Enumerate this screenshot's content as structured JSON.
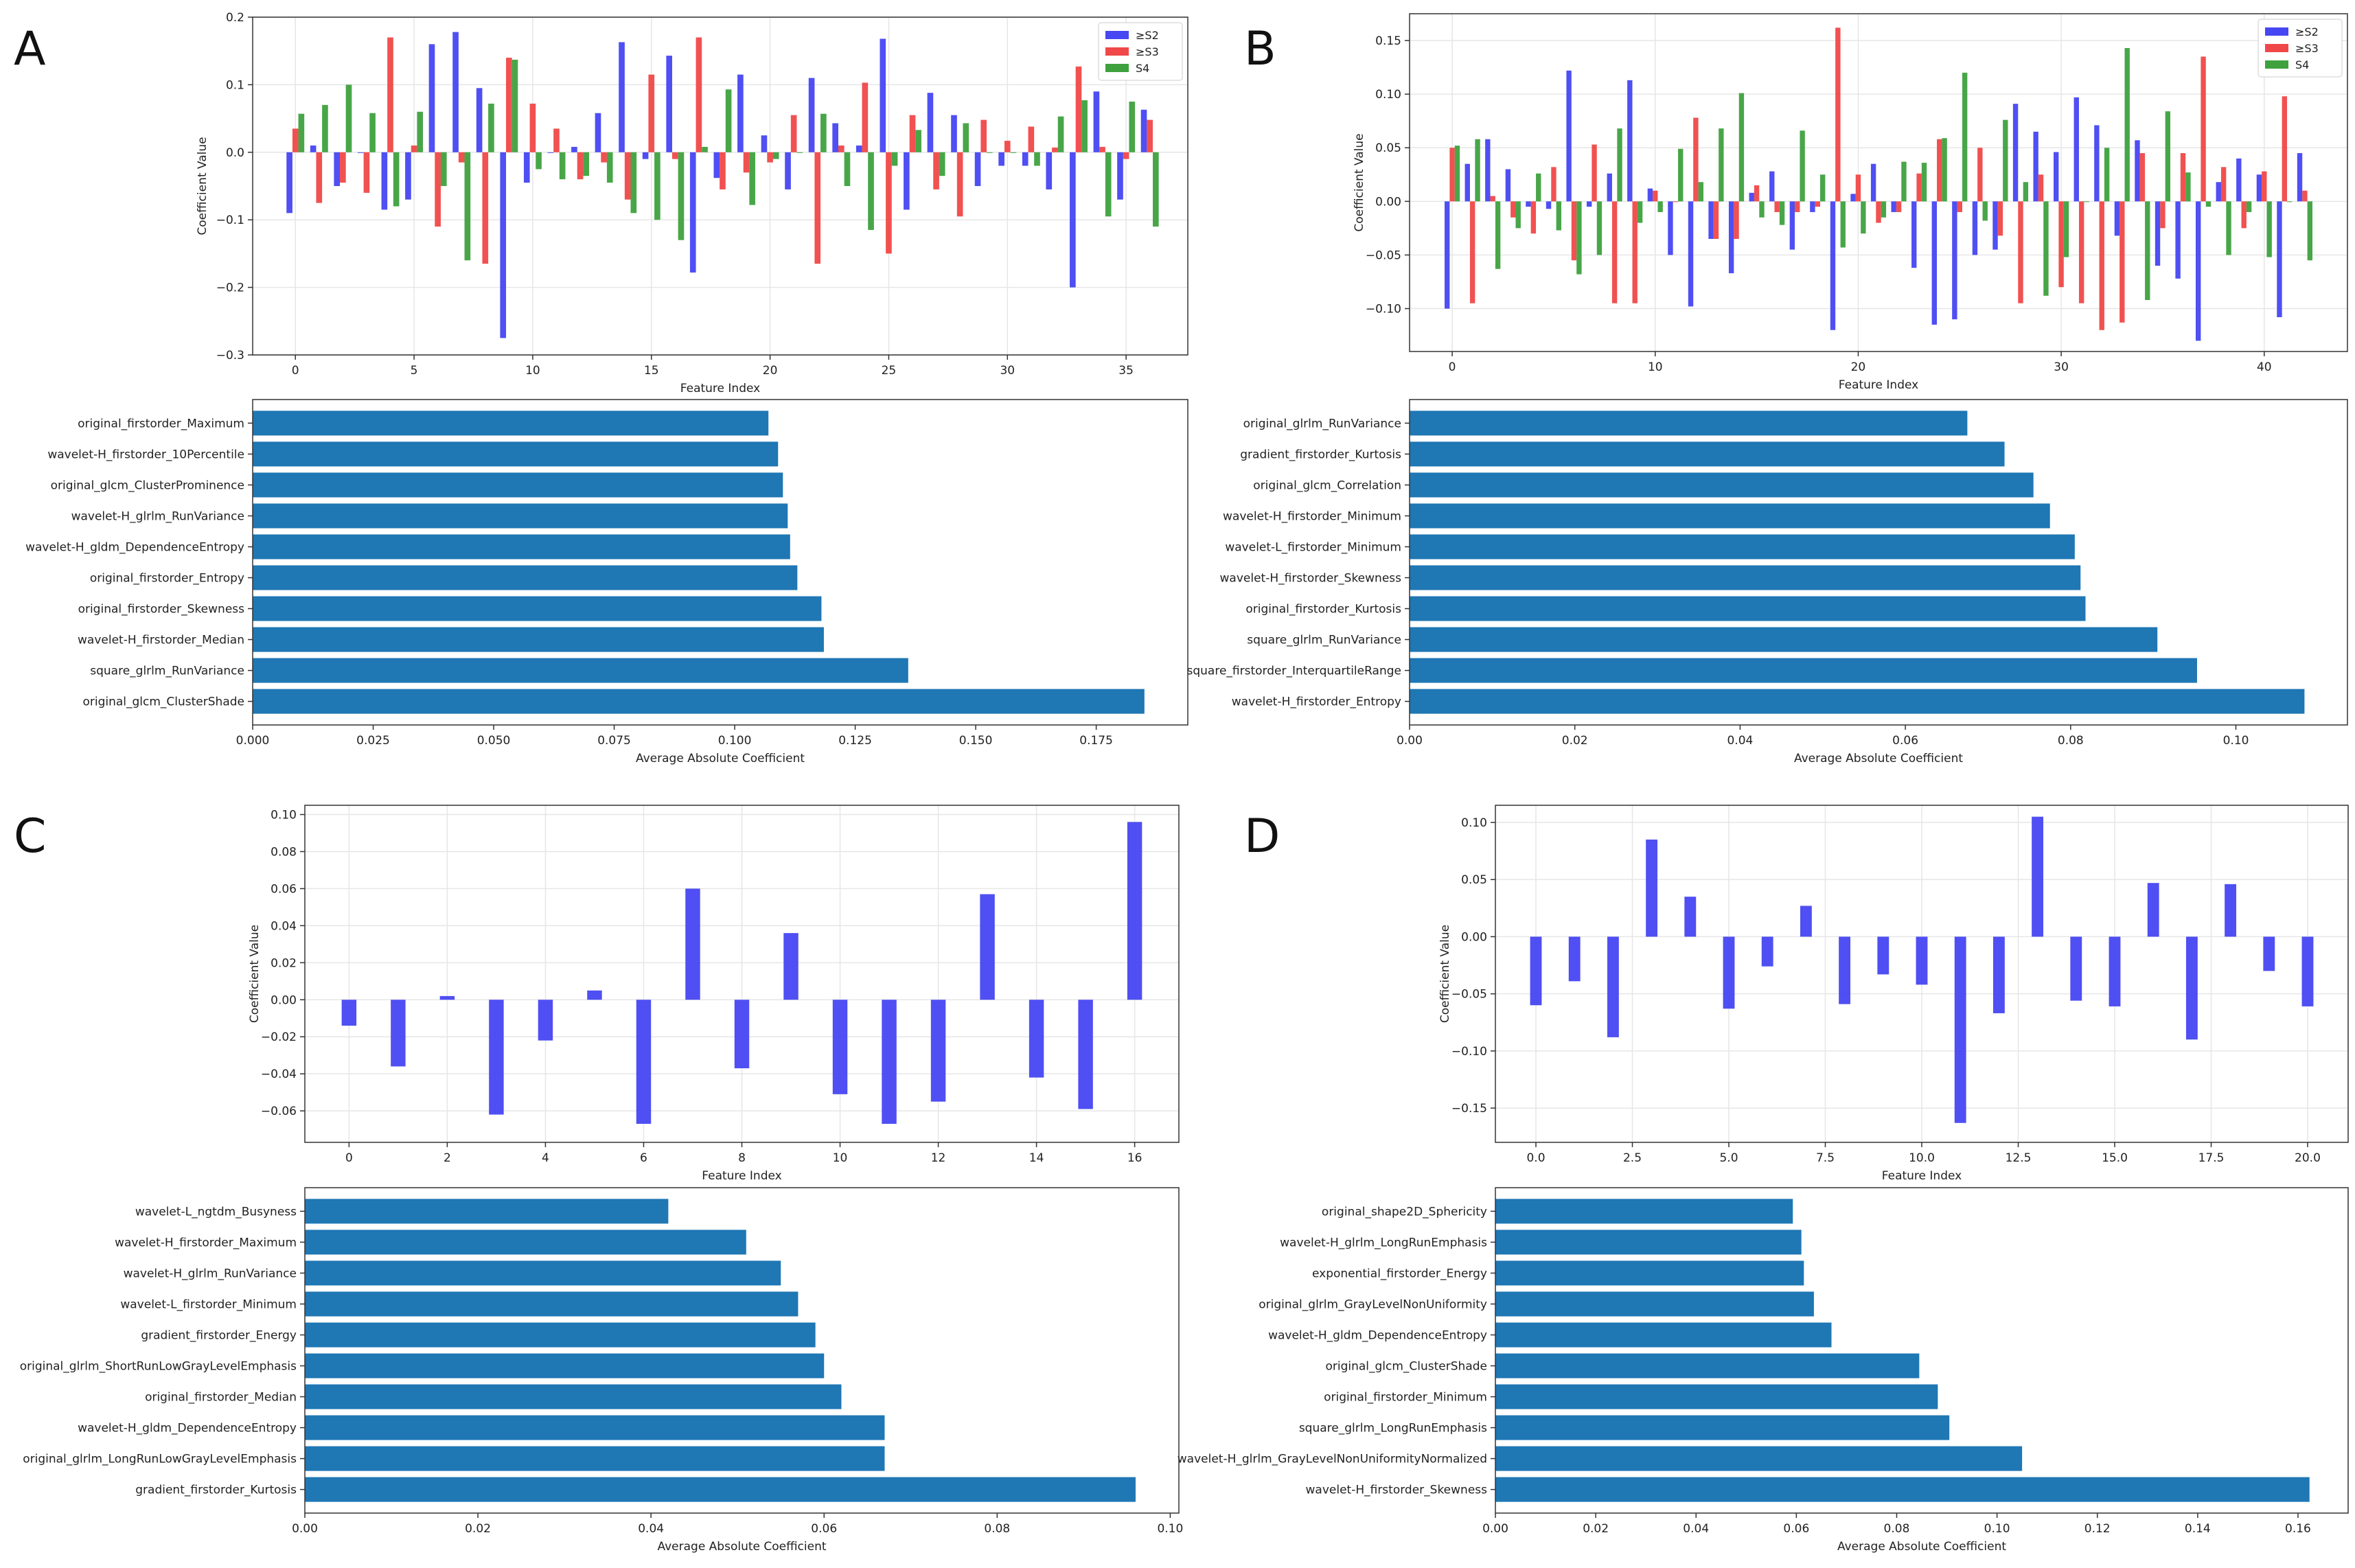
{
  "figure": {
    "panel_letters": [
      "A",
      "B",
      "C",
      "D"
    ]
  },
  "colors": {
    "s2": "#4646f2",
    "s3": "#f04848",
    "s4": "#3ea13e",
    "bar": "#1f77b4"
  },
  "chart_data": [
    {
      "id": "A-top",
      "type": "bar",
      "title": "",
      "xlabel": "Feature Index",
      "ylabel": "Coefficient Value",
      "xlim": [
        -1.8,
        37.6
      ],
      "ylim": [
        -0.3,
        0.2
      ],
      "xticks": [
        0,
        5,
        10,
        15,
        20,
        25,
        30,
        35
      ],
      "yticks": [
        -0.3,
        -0.2,
        -0.1,
        0.0,
        0.1,
        0.2
      ],
      "ytick_decimals": 1,
      "legend": [
        "≥S2",
        "≥S3",
        "S4"
      ],
      "series": [
        {
          "name": "≥S2",
          "values": [
            -0.09,
            0.01,
            -0.05,
            0.0,
            -0.085,
            -0.07,
            0.16,
            0.178,
            0.095,
            -0.275,
            -0.045,
            0.0,
            0.008,
            0.058,
            0.163,
            -0.01,
            0.143,
            -0.178,
            -0.038,
            0.115,
            0.025,
            -0.055,
            0.11,
            0.043,
            0.01,
            0.168,
            -0.085,
            0.088,
            0.055,
            -0.05,
            -0.02,
            -0.02,
            -0.055,
            -0.2,
            0.09,
            -0.07,
            0.063
          ]
        },
        {
          "name": "≥S3",
          "values": [
            0.035,
            -0.075,
            -0.045,
            -0.06,
            0.17,
            0.01,
            -0.11,
            -0.015,
            -0.165,
            0.14,
            0.072,
            0.035,
            -0.04,
            -0.015,
            -0.07,
            0.115,
            -0.01,
            0.17,
            -0.055,
            -0.03,
            -0.015,
            0.055,
            -0.165,
            0.01,
            0.103,
            -0.15,
            0.055,
            -0.055,
            -0.095,
            0.048,
            0.017,
            0.038,
            0.007,
            0.127,
            0.008,
            -0.01,
            0.048
          ]
        },
        {
          "name": "S4",
          "values": [
            0.057,
            0.07,
            0.1,
            0.058,
            -0.08,
            0.06,
            -0.05,
            -0.16,
            0.072,
            0.137,
            -0.025,
            -0.04,
            -0.035,
            -0.045,
            -0.09,
            -0.1,
            -0.13,
            0.008,
            0.093,
            -0.078,
            -0.01,
            0.0,
            0.057,
            -0.05,
            -0.115,
            -0.02,
            0.033,
            -0.035,
            0.043,
            0.0,
            0.0,
            -0.02,
            0.053,
            0.077,
            -0.095,
            0.075,
            -0.11
          ]
        }
      ]
    },
    {
      "id": "A-bottom",
      "type": "barh",
      "xlabel": "Average Absolute Coefficient",
      "ylabel": "",
      "xlim": [
        0,
        0.194
      ],
      "xticks": [
        0,
        0.025,
        0.05,
        0.075,
        0.1,
        0.125,
        0.15,
        0.175
      ],
      "xtick_decimals": 3,
      "categories": [
        "original_firstorder_Maximum",
        "wavelet-H_firstorder_10Percentile",
        "original_glcm_ClusterProminence",
        "wavelet-H_glrlm_RunVariance",
        "wavelet-H_gldm_DependenceEntropy",
        "original_firstorder_Entropy",
        "original_firstorder_Skewness",
        "wavelet-H_firstorder_Median",
        "square_glrlm_RunVariance",
        "original_glcm_ClusterShade"
      ],
      "values": [
        0.107,
        0.109,
        0.11,
        0.111,
        0.1115,
        0.113,
        0.118,
        0.1185,
        0.136,
        0.185
      ]
    },
    {
      "id": "B-top",
      "type": "bar",
      "title": "",
      "xlabel": "Feature Index",
      "ylabel": "Coefficient Value",
      "xlim": [
        -2.1,
        44.1
      ],
      "ylim": [
        -0.14,
        0.175
      ],
      "xticks": [
        0,
        10,
        20,
        30,
        40
      ],
      "yticks": [
        -0.1,
        -0.05,
        0.0,
        0.05,
        0.1,
        0.15
      ],
      "ytick_decimals": 2,
      "legend": [
        "≥S2",
        "≥S3",
        "S4"
      ],
      "series": [
        {
          "name": "≥S2",
          "values": [
            -0.1,
            0.035,
            0.058,
            0.03,
            -0.005,
            -0.007,
            0.122,
            -0.005,
            0.026,
            0.113,
            0.012,
            -0.05,
            -0.098,
            -0.035,
            -0.067,
            0.008,
            0.028,
            -0.045,
            -0.01,
            -0.12,
            0.007,
            0.035,
            -0.01,
            -0.062,
            -0.115,
            -0.11,
            -0.05,
            -0.045,
            0.091,
            0.065,
            0.046,
            0.097,
            0.071,
            -0.032,
            0.057,
            -0.06,
            -0.072,
            -0.13,
            0.018,
            0.04,
            0.025,
            -0.108,
            0.045
          ]
        },
        {
          "name": "≥S3",
          "values": [
            0.05,
            -0.095,
            0.005,
            -0.015,
            -0.03,
            0.032,
            -0.055,
            0.053,
            -0.095,
            -0.095,
            0.01,
            0.0,
            0.078,
            -0.035,
            -0.035,
            0.015,
            -0.01,
            -0.01,
            -0.005,
            0.162,
            0.025,
            -0.02,
            -0.01,
            0.026,
            0.058,
            -0.01,
            0.05,
            -0.032,
            -0.095,
            0.025,
            -0.08,
            -0.095,
            -0.12,
            -0.113,
            0.045,
            -0.025,
            0.045,
            0.135,
            0.032,
            -0.025,
            0.028,
            0.098,
            0.01
          ]
        },
        {
          "name": "S4",
          "values": [
            0.052,
            0.058,
            -0.063,
            -0.025,
            0.026,
            -0.027,
            -0.068,
            -0.05,
            0.068,
            -0.02,
            -0.01,
            0.049,
            0.018,
            0.068,
            0.101,
            -0.015,
            -0.022,
            0.066,
            0.025,
            -0.043,
            -0.03,
            -0.015,
            0.037,
            0.036,
            0.059,
            0.12,
            -0.018,
            0.076,
            0.018,
            -0.088,
            -0.052,
            0.0,
            0.05,
            0.143,
            -0.092,
            0.084,
            0.027,
            -0.005,
            -0.05,
            -0.01,
            -0.052,
            0.0,
            -0.055
          ]
        }
      ]
    },
    {
      "id": "B-bottom",
      "type": "barh",
      "xlabel": "Average Absolute Coefficient",
      "ylabel": "",
      "xlim": [
        0,
        0.1135
      ],
      "xticks": [
        0,
        0.02,
        0.04,
        0.06,
        0.08,
        0.1
      ],
      "xtick_decimals": 2,
      "categories": [
        "original_glrlm_RunVariance",
        "gradient_firstorder_Kurtosis",
        "original_glcm_Correlation",
        "wavelet-H_firstorder_Minimum",
        "wavelet-L_firstorder_Minimum",
        "wavelet-H_firstorder_Skewness",
        "original_firstorder_Kurtosis",
        "square_glrlm_RunVariance",
        "square_firstorder_InterquartileRange",
        "wavelet-H_firstorder_Entropy"
      ],
      "values": [
        0.0675,
        0.072,
        0.0755,
        0.0775,
        0.0805,
        0.0812,
        0.0818,
        0.0905,
        0.0953,
        0.1083
      ]
    },
    {
      "id": "C-top",
      "type": "bar",
      "title": "",
      "xlabel": "Feature Index",
      "ylabel": "Coefficient Value",
      "xlim": [
        -0.9,
        16.9
      ],
      "ylim": [
        -0.077,
        0.105
      ],
      "xticks": [
        0,
        2,
        4,
        6,
        8,
        10,
        12,
        14,
        16
      ],
      "yticks": [
        -0.06,
        -0.04,
        -0.02,
        0.0,
        0.02,
        0.04,
        0.06,
        0.08,
        0.1
      ],
      "ytick_decimals": 2,
      "series": [
        {
          "name": "",
          "values": [
            -0.014,
            -0.036,
            0.002,
            -0.062,
            -0.022,
            0.005,
            -0.067,
            0.06,
            -0.037,
            0.036,
            -0.051,
            -0.067,
            -0.055,
            0.057,
            -0.042,
            -0.059,
            0.096
          ]
        }
      ]
    },
    {
      "id": "C-bottom",
      "type": "barh",
      "xlabel": "Average Absolute Coefficient",
      "ylabel": "",
      "xlim": [
        0,
        0.101
      ],
      "xticks": [
        0,
        0.02,
        0.04,
        0.06,
        0.08,
        0.1
      ],
      "xtick_decimals": 2,
      "categories": [
        "wavelet-L_ngtdm_Busyness",
        "wavelet-H_firstorder_Maximum",
        "wavelet-H_glrlm_RunVariance",
        "wavelet-L_firstorder_Minimum",
        "gradient_firstorder_Energy",
        "original_glrlm_ShortRunLowGrayLevelEmphasis",
        "original_firstorder_Median",
        "wavelet-H_gldm_DependenceEntropy",
        "original_glrlm_LongRunLowGrayLevelEmphasis",
        "gradient_firstorder_Kurtosis"
      ],
      "values": [
        0.042,
        0.051,
        0.055,
        0.057,
        0.059,
        0.06,
        0.062,
        0.067,
        0.067,
        0.096
      ]
    },
    {
      "id": "D-top",
      "type": "bar",
      "title": "",
      "xlabel": "Feature Index",
      "ylabel": "Coefficient Value",
      "xlim": [
        -1.05,
        21.05
      ],
      "ylim": [
        -0.18,
        0.115
      ],
      "xticks": [
        0,
        2.5,
        5,
        7.5,
        10,
        12.5,
        15,
        17.5,
        20
      ],
      "yticks": [
        -0.15,
        -0.1,
        -0.05,
        0.0,
        0.05,
        0.1
      ],
      "ytick_decimals": 2,
      "xtick_decimals": 1,
      "series": [
        {
          "name": "",
          "values": [
            -0.06,
            -0.039,
            -0.088,
            0.085,
            0.035,
            -0.063,
            -0.026,
            0.027,
            -0.059,
            -0.033,
            -0.042,
            -0.163,
            -0.067,
            0.105,
            -0.056,
            -0.061,
            0.047,
            -0.09,
            0.046,
            -0.03,
            -0.061
          ]
        }
      ]
    },
    {
      "id": "D-bottom",
      "type": "barh",
      "xlabel": "Average Absolute Coefficient",
      "ylabel": "",
      "xlim": [
        0,
        0.17
      ],
      "xticks": [
        0,
        0.02,
        0.04,
        0.06,
        0.08,
        0.1,
        0.12,
        0.14,
        0.16
      ],
      "xtick_decimals": 2,
      "categories": [
        "original_shape2D_Sphericity",
        "wavelet-H_glrlm_LongRunEmphasis",
        "exponential_firstorder_Energy",
        "original_glrlm_GrayLevelNonUniformity",
        "wavelet-H_gldm_DependenceEntropy",
        "original_glcm_ClusterShade",
        "original_firstorder_Minimum",
        "square_glrlm_LongRunEmphasis",
        "wavelet-H_glrlm_GrayLevelNonUniformityNormalized",
        "wavelet-H_firstorder_Skewness"
      ],
      "values": [
        0.0593,
        0.061,
        0.0615,
        0.0635,
        0.067,
        0.0845,
        0.0882,
        0.0905,
        0.105,
        0.1623
      ]
    }
  ]
}
